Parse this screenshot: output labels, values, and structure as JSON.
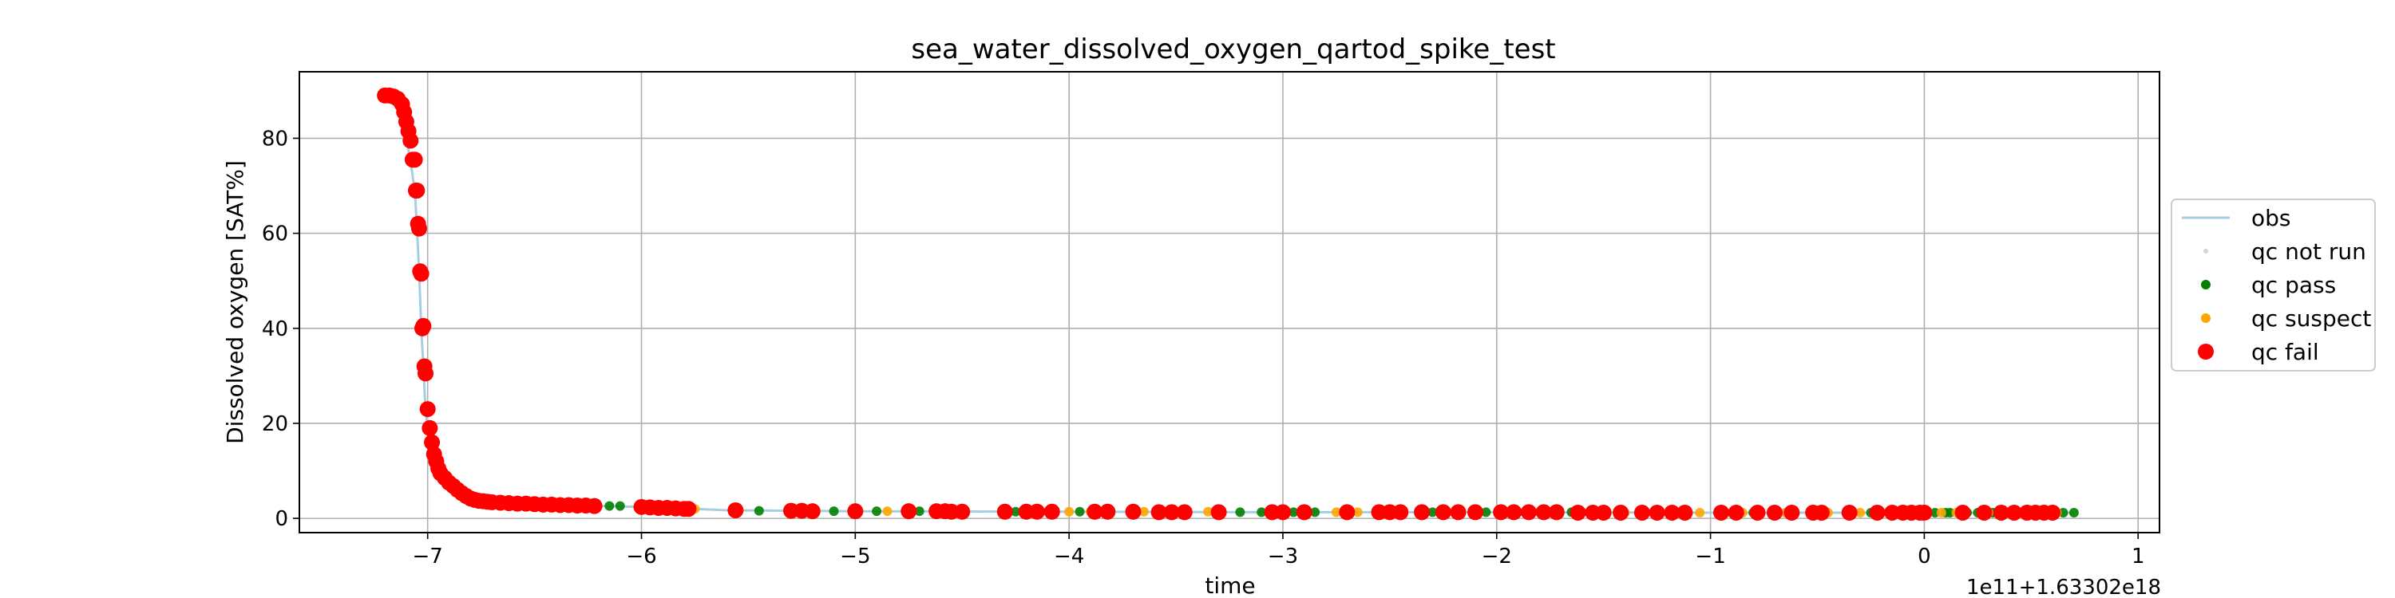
{
  "chart_data": {
    "type": "scatter",
    "title": "sea_water_dissolved_oxygen_qartod_spike_test",
    "xlabel": "time",
    "ylabel": "Dissolved oxygen [SAT%]",
    "x_offset_label": "1e11+1.63302e18",
    "xlim": [
      -7.6,
      1.1
    ],
    "ylim": [
      -3,
      94
    ],
    "x_ticks": [
      -7,
      -6,
      -5,
      -4,
      -3,
      -2,
      -1,
      0,
      1
    ],
    "x_tick_labels": [
      "−7",
      "−6",
      "−5",
      "−4",
      "−3",
      "−2",
      "−1",
      "0",
      "1"
    ],
    "y_ticks": [
      0,
      20,
      40,
      60,
      80
    ],
    "y_tick_labels": [
      "0",
      "20",
      "40",
      "60",
      "80"
    ],
    "grid": true,
    "legend_position": "center-right",
    "series": [
      {
        "name": "obs",
        "kind": "line",
        "color": "#a6cee3",
        "x": [
          -7.2,
          -7.16,
          -7.12,
          -7.1,
          -7.08,
          -7.06,
          -7.05,
          -7.04,
          -7.03,
          -7.02,
          -7.01,
          -7.0,
          -6.99,
          -6.98,
          -6.96,
          -6.94,
          -6.92,
          -6.9,
          -6.88,
          -6.85,
          -6.82,
          -6.78,
          -6.74,
          -6.7,
          -6.6,
          -6.5,
          -6.4,
          -6.3,
          -6.2,
          -6.0,
          -5.8,
          -5.6,
          -5.0,
          -4.0,
          -3.0,
          -2.0,
          -1.0,
          0.0,
          0.5,
          0.7
        ],
        "y": [
          89,
          88.5,
          86,
          80,
          75,
          69,
          61,
          52,
          40,
          32,
          23,
          19,
          15,
          12.5,
          10.5,
          9,
          7.5,
          6.5,
          5.5,
          4.5,
          4,
          3.7,
          3.5,
          3.3,
          3.1,
          2.9,
          2.8,
          2.7,
          2.6,
          2.4,
          2.1,
          1.7,
          1.5,
          1.4,
          1.3,
          1.3,
          1.2,
          1.2,
          1.2,
          1.2
        ]
      },
      {
        "name": "qc pass",
        "kind": "points",
        "color": "#008000",
        "x": [
          -6.15,
          -6.1,
          -5.45,
          -5.1,
          -4.9,
          -4.7,
          -4.25,
          -3.95,
          -3.7,
          -3.2,
          -3.1,
          -3.05,
          -2.95,
          -2.85,
          -2.45,
          -2.3,
          -2.05,
          -1.9,
          -1.65,
          -1.15,
          -0.9,
          -0.8,
          -0.5,
          -0.25,
          -0.05,
          0.05,
          0.1,
          0.12,
          0.2,
          0.25,
          0.32,
          0.38,
          0.45,
          0.65,
          0.7
        ],
        "y": [
          2.6,
          2.6,
          1.6,
          1.5,
          1.5,
          1.5,
          1.4,
          1.4,
          1.4,
          1.3,
          1.3,
          1.3,
          1.3,
          1.3,
          1.3,
          1.3,
          1.3,
          1.3,
          1.3,
          1.2,
          1.2,
          1.2,
          1.2,
          1.2,
          1.2,
          1.2,
          1.2,
          1.2,
          1.2,
          1.2,
          1.2,
          1.2,
          1.2,
          1.2,
          1.2
        ]
      },
      {
        "name": "qc suspect",
        "kind": "points",
        "color": "#ffa500",
        "x": [
          -6.25,
          -5.75,
          -5.25,
          -4.85,
          -4.55,
          -4.1,
          -4.0,
          -3.9,
          -3.85,
          -3.65,
          -3.45,
          -3.35,
          -2.9,
          -2.75,
          -2.65,
          -2.2,
          -1.8,
          -1.6,
          -1.4,
          -1.3,
          -1.05,
          -0.95,
          -0.85,
          -0.65,
          -0.45,
          -0.3,
          -0.2,
          -0.1,
          0.0,
          0.08,
          0.15,
          0.3,
          0.4,
          0.52,
          0.58,
          0.62
        ],
        "y": [
          2.7,
          2.0,
          1.6,
          1.5,
          1.5,
          1.4,
          1.4,
          1.4,
          1.4,
          1.4,
          1.4,
          1.4,
          1.3,
          1.3,
          1.3,
          1.3,
          1.3,
          1.3,
          1.2,
          1.2,
          1.2,
          1.2,
          1.2,
          1.2,
          1.2,
          1.2,
          1.2,
          1.2,
          1.2,
          1.2,
          1.2,
          1.2,
          1.2,
          1.2,
          1.2,
          1.2
        ]
      },
      {
        "name": "qc fail",
        "kind": "points",
        "color": "#ff0000",
        "x": [
          -7.2,
          -7.18,
          -7.16,
          -7.14,
          -7.12,
          -7.11,
          -7.1,
          -7.09,
          -7.08,
          -7.07,
          -7.06,
          -7.055,
          -7.05,
          -7.045,
          -7.04,
          -7.035,
          -7.03,
          -7.025,
          -7.02,
          -7.015,
          -7.01,
          -7.0,
          -6.99,
          -6.98,
          -6.97,
          -6.96,
          -6.95,
          -6.94,
          -6.92,
          -6.9,
          -6.88,
          -6.86,
          -6.84,
          -6.82,
          -6.8,
          -6.78,
          -6.76,
          -6.74,
          -6.72,
          -6.7,
          -6.66,
          -6.62,
          -6.58,
          -6.54,
          -6.5,
          -6.46,
          -6.42,
          -6.38,
          -6.34,
          -6.3,
          -6.26,
          -6.22,
          -6.0,
          -5.96,
          -5.92,
          -5.88,
          -5.84,
          -5.8,
          -5.78,
          -5.56,
          -5.3,
          -5.25,
          -5.2,
          -5.0,
          -4.75,
          -4.62,
          -4.58,
          -4.55,
          -4.5,
          -4.3,
          -4.2,
          -4.15,
          -4.08,
          -3.88,
          -3.82,
          -3.7,
          -3.58,
          -3.52,
          -3.46,
          -3.3,
          -3.05,
          -3.0,
          -2.9,
          -2.7,
          -2.55,
          -2.5,
          -2.45,
          -2.35,
          -2.25,
          -2.18,
          -2.1,
          -1.98,
          -1.92,
          -1.85,
          -1.78,
          -1.72,
          -1.62,
          -1.55,
          -1.5,
          -1.42,
          -1.32,
          -1.25,
          -1.18,
          -1.12,
          -0.95,
          -0.88,
          -0.78,
          -0.7,
          -0.62,
          -0.52,
          -0.48,
          -0.35,
          -0.22,
          -0.15,
          -0.1,
          -0.06,
          -0.02,
          0.0,
          0.18,
          0.28,
          0.36,
          0.42,
          0.48,
          0.52,
          0.56,
          0.6
        ],
        "y": [
          89,
          89,
          88.8,
          88.3,
          87.2,
          85.5,
          83.5,
          81.5,
          79.5,
          75.5,
          75.5,
          69,
          69,
          62,
          61,
          52,
          51.5,
          40,
          40.5,
          32,
          30.5,
          23,
          19,
          16,
          13.5,
          12,
          10.5,
          9.5,
          8.5,
          7.5,
          6.8,
          6.0,
          5.3,
          4.7,
          4.2,
          3.9,
          3.7,
          3.6,
          3.5,
          3.4,
          3.3,
          3.2,
          3.1,
          3.1,
          3.0,
          2.9,
          2.9,
          2.8,
          2.8,
          2.7,
          2.7,
          2.6,
          2.4,
          2.3,
          2.2,
          2.2,
          2.1,
          2.0,
          2.0,
          1.7,
          1.6,
          1.6,
          1.5,
          1.5,
          1.5,
          1.5,
          1.5,
          1.4,
          1.4,
          1.4,
          1.4,
          1.4,
          1.4,
          1.4,
          1.4,
          1.4,
          1.3,
          1.3,
          1.3,
          1.3,
          1.3,
          1.3,
          1.3,
          1.3,
          1.3,
          1.3,
          1.3,
          1.3,
          1.3,
          1.3,
          1.3,
          1.3,
          1.3,
          1.3,
          1.3,
          1.3,
          1.2,
          1.2,
          1.2,
          1.2,
          1.2,
          1.2,
          1.2,
          1.2,
          1.2,
          1.2,
          1.2,
          1.2,
          1.2,
          1.2,
          1.2,
          1.2,
          1.2,
          1.2,
          1.2,
          1.2,
          1.2,
          1.2,
          1.2,
          1.2,
          1.2,
          1.2,
          1.2,
          1.2,
          1.2,
          1.2
        ]
      }
    ],
    "legend": [
      {
        "name": "obs",
        "color": "#a6cee3",
        "marker": "line"
      },
      {
        "name": "qc not run",
        "color": "#d3d3d3",
        "marker": "small-dot"
      },
      {
        "name": "qc pass",
        "color": "#008000",
        "marker": "dot"
      },
      {
        "name": "qc suspect",
        "color": "#ffa500",
        "marker": "dot"
      },
      {
        "name": "qc fail",
        "color": "#ff0000",
        "marker": "big-dot"
      }
    ]
  }
}
